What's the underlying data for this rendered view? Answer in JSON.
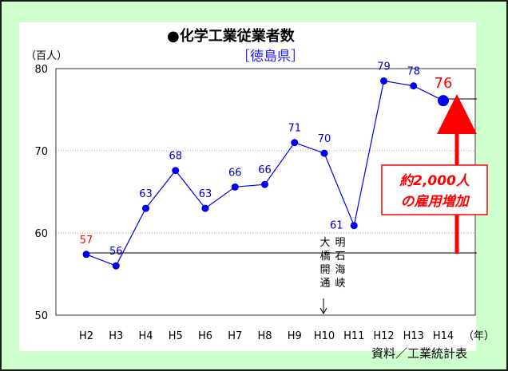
{
  "title": "●化学工業従業者数",
  "subtitle": "［徳島県］",
  "source": "資料／工業統計表",
  "chart_data": {
    "type": "line",
    "title": "●化学工業従業者数",
    "subtitle": "［徳島県］",
    "ylabel": "（百人）",
    "xlabel": "（年）",
    "ylim": [
      50,
      80
    ],
    "yticks": [
      50,
      60,
      70,
      80
    ],
    "grid": true,
    "categories": [
      "H2",
      "H3",
      "H4",
      "H5",
      "H6",
      "H7",
      "H8",
      "H9",
      "H10",
      "H11",
      "H12",
      "H13",
      "H14"
    ],
    "series": [
      {
        "values": [
          57.4,
          56,
          63,
          67.6,
          63,
          65.6,
          65.9,
          71,
          69.7,
          60.9,
          78.5,
          77.9,
          76.1
        ]
      }
    ],
    "data_labels": [
      "57",
      "56",
      "63",
      "68",
      "63",
      "66",
      "66",
      "71",
      "70",
      "61",
      "79",
      "78",
      "76"
    ],
    "colors": {
      "line": "#0000ee",
      "highlight": "#ff0000",
      "label": "#0000cc"
    },
    "annotations": {
      "bridge_label_left": "大橋開通",
      "bridge_label_right": "明石海峡",
      "increase_line1": "約2,000人",
      "increase_line2": "の雇用増加"
    }
  }
}
